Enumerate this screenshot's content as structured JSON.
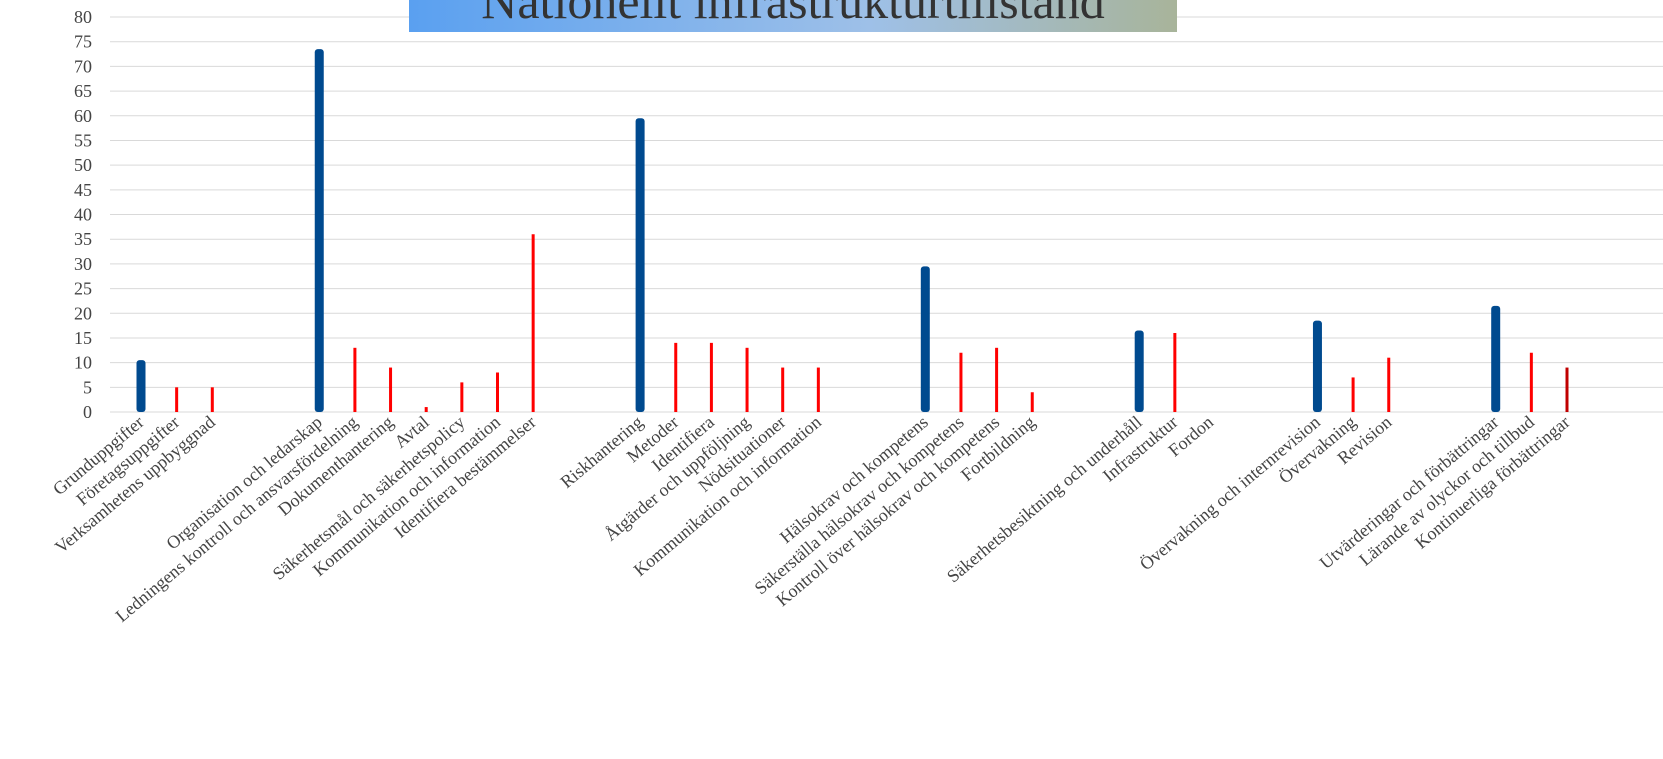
{
  "chart_data": {
    "type": "bar",
    "title": "Nationellt infrastrukturtillstånd",
    "categories": [
      "Grunduppgifter",
      "Företagsuppgifter",
      "Verksamhetens uppbyggnad",
      null,
      null,
      "Organisation och ledarskap",
      "Ledningens kontroll och ansvarsfördelning",
      "Dokumenthantering",
      "Avtal",
      "Säkerhetsmål och säkerhetspolicy",
      "Kommunikation och information",
      "Identifiera bestämmelser",
      null,
      null,
      "Riskhantering",
      "Metoder",
      "Identifiera",
      "Åtgärder och uppföljning",
      "Nödsituationer",
      "Kommunikation och information",
      null,
      null,
      "Hälsokrav och kompetens",
      "Säkerställa hälsokrav och kompetens",
      "Kontroll över hälsokrav och kompetens",
      "Fortbildning",
      null,
      null,
      "Säkerhetsbesiktning och underhåll",
      "Infrastruktur",
      "Fordon",
      null,
      null,
      "Övervakning och internrevision",
      "Övervakning",
      "Revision",
      null,
      null,
      "Utvärderingar och förbättringar",
      "Lärande av olyckor och tillbud",
      "Kontinuerliga förbättringar"
    ],
    "values": [
      10.5,
      5,
      5,
      null,
      null,
      73.5,
      13,
      9,
      1,
      6,
      8,
      36,
      null,
      null,
      59.5,
      14,
      14,
      13,
      9,
      9,
      null,
      null,
      29.5,
      12,
      13,
      4,
      null,
      null,
      16.5,
      16,
      0,
      null,
      null,
      18.5,
      7,
      11,
      null,
      null,
      21.5,
      12,
      9
    ],
    "colors": [
      "#004a8f",
      "#ff0000",
      "#ff0000",
      null,
      null,
      "#004a8f",
      "#ff0000",
      "#ff0000",
      "#ff0000",
      "#ff0000",
      "#ff0000",
      "#ff0000",
      null,
      null,
      "#004a8f",
      "#ff0000",
      "#ff0000",
      "#ff0000",
      "#ff0000",
      "#ff0000",
      null,
      null,
      "#004a8f",
      "#ff0000",
      "#ff0000",
      "#ff0000",
      null,
      null,
      "#004a8f",
      "#ff0000",
      "#ff0000",
      null,
      null,
      "#004a8f",
      "#ff0000",
      "#ff0000",
      null,
      null,
      "#004a8f",
      "#ff0000",
      "#c00000"
    ],
    "ylim": [
      0,
      80
    ],
    "yticks": [
      0,
      5,
      10,
      15,
      20,
      25,
      30,
      35,
      40,
      45,
      50,
      55,
      60,
      65,
      70,
      75,
      80
    ],
    "grid": true
  }
}
